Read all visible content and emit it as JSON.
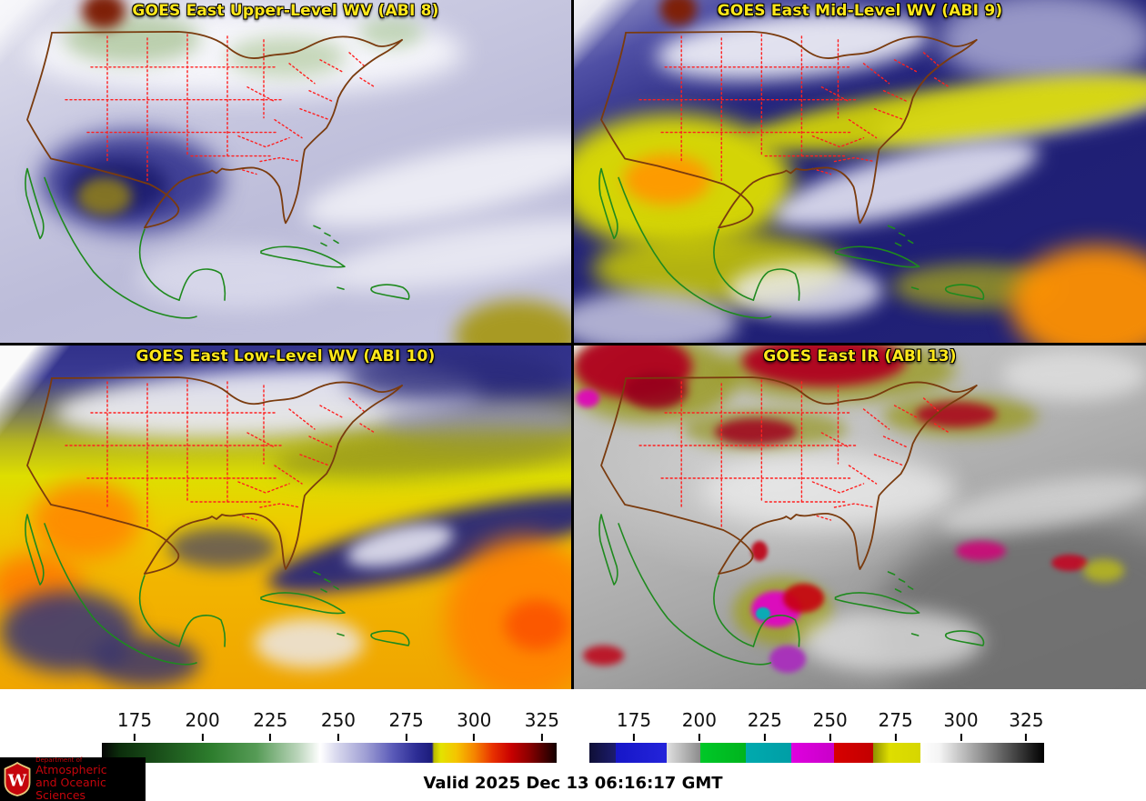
{
  "panels": [
    {
      "title": "GOES East Upper-Level WV (ABI 8)"
    },
    {
      "title": "GOES East Mid-Level WV (ABI 9)"
    },
    {
      "title": "GOES East Low-Level WV (ABI 10)"
    },
    {
      "title": "GOES East IR (ABI 13)"
    }
  ],
  "colorbars": {
    "wv": {
      "tick_labels": [
        "175",
        "200",
        "225",
        "250",
        "275",
        "300",
        "325"
      ],
      "palette": [
        "#000000",
        "#1c551c",
        "#2d7d2d",
        "#ffffff",
        "#9f9fd4",
        "#2e2e96",
        "#e3e300",
        "#f58300",
        "#c80000",
        "#3a0000"
      ]
    },
    "ir": {
      "tick_labels": [
        "175",
        "200",
        "225",
        "250",
        "275",
        "300",
        "325"
      ],
      "palette": [
        "#1c1c6e",
        "#2424da",
        "#b0b0b0",
        "#00c828",
        "#00aaae",
        "#df00df",
        "#d80000",
        "#d6d600",
        "#ffffff",
        "#000000"
      ]
    }
  },
  "footer": {
    "valid": "Valid 2025 Dec 13 06:16:17 GMT"
  },
  "logo": {
    "monogram": "W",
    "dept": "Department of",
    "line1": "Atmospheric",
    "line2": "and Oceanic Sciences"
  },
  "overlay_colors": {
    "title_text": "#ffe81a",
    "state_borders": "#ff1f1f",
    "us_coast": "#7a3b0e",
    "island_coasts": "#1e8a1e",
    "uw_red": "#c5050c"
  }
}
